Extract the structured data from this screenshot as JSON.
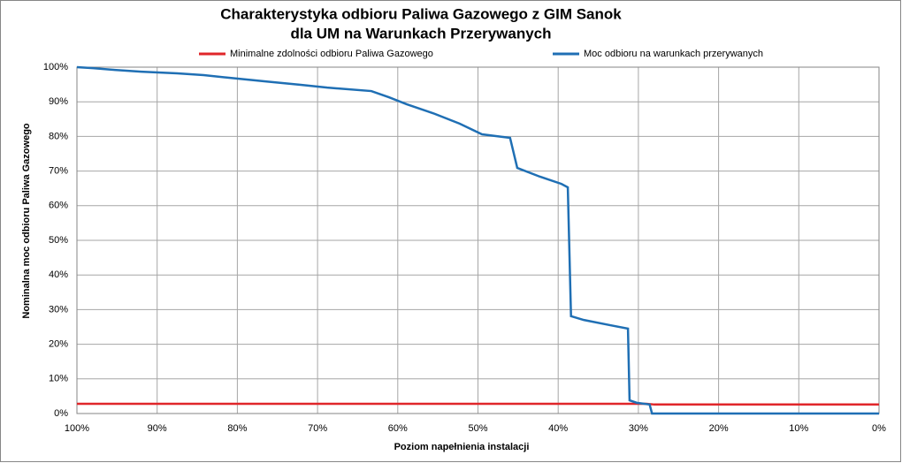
{
  "chart_data": {
    "type": "line",
    "title": [
      "Charakterystyka odbioru Paliwa Gazowego z GIM Sanok",
      "dla UM na Warunkach Przerywanych"
    ],
    "xlabel": "Poziom napełnienia instalacji",
    "ylabel": "Nominalna moc odbioru Paliwa Gazowego",
    "legend": "top",
    "grid": true,
    "xlim": [
      100,
      0
    ],
    "ylim": [
      0,
      100
    ],
    "xticks": [
      {
        "value": 100,
        "label": "100%"
      },
      {
        "value": 90,
        "label": "90%"
      },
      {
        "value": 80,
        "label": "80%"
      },
      {
        "value": 70,
        "label": "70%"
      },
      {
        "value": 60,
        "label": "60%"
      },
      {
        "value": 50,
        "label": "50%"
      },
      {
        "value": 40,
        "label": "40%"
      },
      {
        "value": 30,
        "label": "30%"
      },
      {
        "value": 20,
        "label": "20%"
      },
      {
        "value": 10,
        "label": "10%"
      },
      {
        "value": 0,
        "label": "0%"
      }
    ],
    "yticks": [
      {
        "value": 0,
        "label": "0%"
      },
      {
        "value": 10,
        "label": "10%"
      },
      {
        "value": 20,
        "label": "20%"
      },
      {
        "value": 30,
        "label": "30%"
      },
      {
        "value": 40,
        "label": "40%"
      },
      {
        "value": 50,
        "label": "50%"
      },
      {
        "value": 60,
        "label": "60%"
      },
      {
        "value": 70,
        "label": "70%"
      },
      {
        "value": 80,
        "label": "80%"
      },
      {
        "value": 90,
        "label": "90%"
      },
      {
        "value": 100,
        "label": "100%"
      }
    ],
    "series": [
      {
        "name": "Minimalne zdolności odbioru Paliwa Gazowego",
        "color": "#e0262a",
        "x": [
          100,
          29,
          28,
          0
        ],
        "values": [
          2.8,
          2.8,
          2.6,
          2.6
        ]
      },
      {
        "name": "Moc odbioru na warunkach przerywanych",
        "color": "#1f6fb4",
        "x": [
          100,
          98,
          95.3,
          92,
          87.5,
          84.2,
          80.9,
          76.5,
          72.1,
          68.8,
          63.3,
          61.1,
          58.9,
          55.6,
          52.3,
          49.5,
          46,
          45.1,
          42.3,
          39.6,
          38.8,
          38.4,
          36.8,
          33.5,
          31.3,
          31.1,
          30.2,
          28.6,
          28.3,
          0
        ],
        "values": [
          100,
          99.7,
          99.2,
          98.7,
          98.2,
          97.7,
          96.9,
          95.9,
          94.9,
          94.1,
          93.1,
          91.3,
          89.3,
          86.7,
          83.7,
          80.6,
          79.6,
          70.9,
          68.4,
          66.3,
          65.3,
          28.1,
          27,
          25.5,
          24.5,
          3.8,
          3.1,
          2.6,
          0,
          0
        ]
      }
    ]
  }
}
